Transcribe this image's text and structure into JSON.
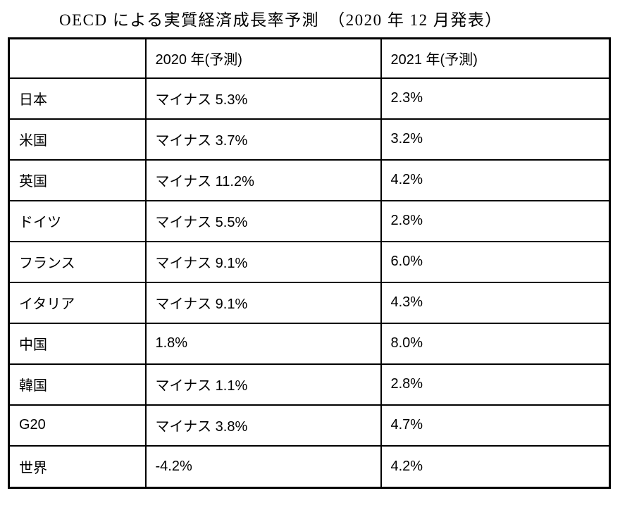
{
  "title": "OECD による実質経済成長率予測　（2020 年 12 月発表）",
  "colors": {
    "text": "#000000",
    "background": "#ffffff",
    "border": "#000000"
  },
  "table": {
    "columns": [
      "",
      "2020 年(予測)",
      "2021 年(予測)"
    ],
    "rows": [
      {
        "label": "日本",
        "y2020": "マイナス 5.3%",
        "y2021": "2.3%"
      },
      {
        "label": "米国",
        "y2020": "マイナス 3.7%",
        "y2021": "3.2%"
      },
      {
        "label": "英国",
        "y2020": "マイナス 11.2%",
        "y2021": "4.2%"
      },
      {
        "label": "ドイツ",
        "y2020": "マイナス 5.5%",
        "y2021": "2.8%"
      },
      {
        "label": "フランス",
        "y2020": "マイナス 9.1%",
        "y2021": "6.0%"
      },
      {
        "label": "イタリア",
        "y2020": "マイナス 9.1%",
        "y2021": "4.3%"
      },
      {
        "label": "中国",
        "y2020": "1.8%",
        "y2021": "8.0%"
      },
      {
        "label": "韓国",
        "y2020": "マイナス 1.1%",
        "y2021": "2.8%"
      },
      {
        "label": "G20",
        "y2020": "マイナス 3.8%",
        "y2021": "4.7%"
      },
      {
        "label": "世界",
        "y2020": "-4.2%",
        "y2021": "4.2%"
      }
    ]
  },
  "chart_data": {
    "type": "table",
    "title": "OECDによる実質経済成長率予測（2020年12月発表）",
    "categories": [
      "日本",
      "米国",
      "英国",
      "ドイツ",
      "フランス",
      "イタリア",
      "中国",
      "韓国",
      "G20",
      "世界"
    ],
    "series": [
      {
        "name": "2020年(予測)",
        "values": [
          -5.3,
          -3.7,
          -11.2,
          -5.5,
          -9.1,
          -9.1,
          1.8,
          -1.1,
          -3.8,
          -4.2
        ]
      },
      {
        "name": "2021年(予測)",
        "values": [
          2.3,
          3.2,
          4.2,
          2.8,
          6.0,
          4.3,
          8.0,
          2.8,
          4.7,
          4.2
        ]
      }
    ]
  }
}
